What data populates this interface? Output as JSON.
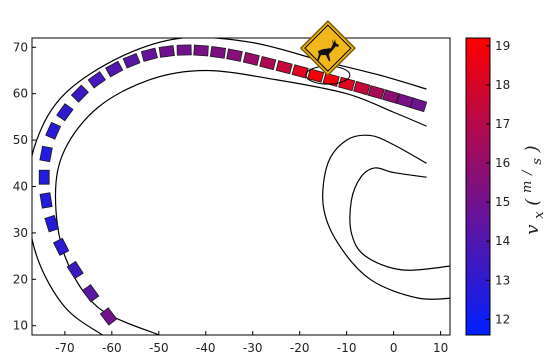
{
  "chart_data": {
    "type": "scatter",
    "title": "",
    "xlabel": "",
    "ylabel": "",
    "xlim": [
      -77,
      12
    ],
    "ylim": [
      8,
      72
    ],
    "xticks": [
      -70,
      -60,
      -50,
      -40,
      -30,
      -20,
      -10,
      0,
      10
    ],
    "yticks": [
      10,
      20,
      30,
      40,
      50,
      60,
      70
    ],
    "grid": false,
    "legend": "none",
    "road": {
      "outer_left": [
        [
          -62,
          8
        ],
        [
          -70,
          14
        ],
        [
          -76,
          25
        ],
        [
          -78,
          38
        ],
        [
          -76,
          50
        ],
        [
          -70,
          60
        ],
        [
          -58,
          68
        ],
        [
          -45,
          72
        ],
        [
          -30,
          71
        ],
        [
          -15,
          67
        ],
        [
          -3,
          64
        ],
        [
          7,
          61
        ]
      ],
      "outer_right": [
        [
          -50,
          8
        ],
        [
          -63,
          14
        ],
        [
          -70,
          25
        ],
        [
          -72,
          38
        ],
        [
          -70,
          48
        ],
        [
          -63,
          57
        ],
        [
          -52,
          63
        ],
        [
          -40,
          65
        ],
        [
          -25,
          63
        ],
        [
          -10,
          60
        ],
        [
          0,
          56
        ],
        [
          7,
          53
        ]
      ],
      "inner_outer": [
        [
          7,
          45
        ],
        [
          0,
          49
        ],
        [
          -5,
          51
        ],
        [
          -10,
          50
        ],
        [
          -14,
          45
        ],
        [
          -15,
          36
        ],
        [
          -12,
          28
        ],
        [
          -5,
          20
        ],
        [
          5,
          16
        ],
        [
          13,
          16
        ]
      ],
      "inner_inner": [
        [
          7,
          42
        ],
        [
          0,
          43
        ],
        [
          -4,
          44
        ],
        [
          -7,
          42
        ],
        [
          -9,
          37
        ],
        [
          -9,
          30
        ],
        [
          -6,
          25
        ],
        [
          2,
          22
        ],
        [
          13,
          23
        ]
      ]
    },
    "trajectory": {
      "x": [
        -60.7,
        -64.5,
        -67.8,
        -70.8,
        -72.8,
        -74.0,
        -74.4,
        -74.0,
        -72.5,
        -70.0,
        -66.8,
        -63.2,
        -59.5,
        -55.8,
        -52.0,
        -48.3,
        -44.6,
        -41.0,
        -37.4,
        -33.9,
        -30.3,
        -26.8,
        -23.3,
        -19.9,
        -16.6,
        -13.3,
        -10.0,
        -6.8,
        -3.7,
        -0.6,
        2.4,
        5.3
      ],
      "y": [
        12,
        17,
        22,
        27,
        32,
        37,
        42,
        47,
        52,
        56,
        60,
        63,
        65.3,
        67.1,
        68.4,
        69.1,
        69.4,
        69.3,
        68.9,
        68.3,
        67.5,
        66.6,
        65.7,
        64.8,
        63.9,
        63.0,
        62.1,
        61.2,
        60.3,
        59.4,
        58.5,
        57.6
      ],
      "vx": [
        15.0,
        14.3,
        13.4,
        12.9,
        12.7,
        12.6,
        12.6,
        12.6,
        12.8,
        13.0,
        13.4,
        13.7,
        14.0,
        14.3,
        14.6,
        14.9,
        15.0,
        15.2,
        15.3,
        15.6,
        16.1,
        16.8,
        17.5,
        18.3,
        18.9,
        18.8,
        18.3,
        17.5,
        16.6,
        15.8,
        15.2,
        14.9
      ]
    },
    "warning_sign": {
      "icon": "deer-crossing-sign-icon",
      "x": -14,
      "y": 64,
      "color": "#f2b81b"
    },
    "colorbar": {
      "label": "v_x(m/s)",
      "label_parts": {
        "base": "v",
        "sub": "x",
        "num": "m",
        "den": "s"
      },
      "range": [
        11.6,
        19.2
      ],
      "ticks": [
        12,
        13,
        14,
        15,
        16,
        17,
        18,
        19
      ],
      "color_low": "#0020ff",
      "color_high": "#ff0000"
    }
  }
}
